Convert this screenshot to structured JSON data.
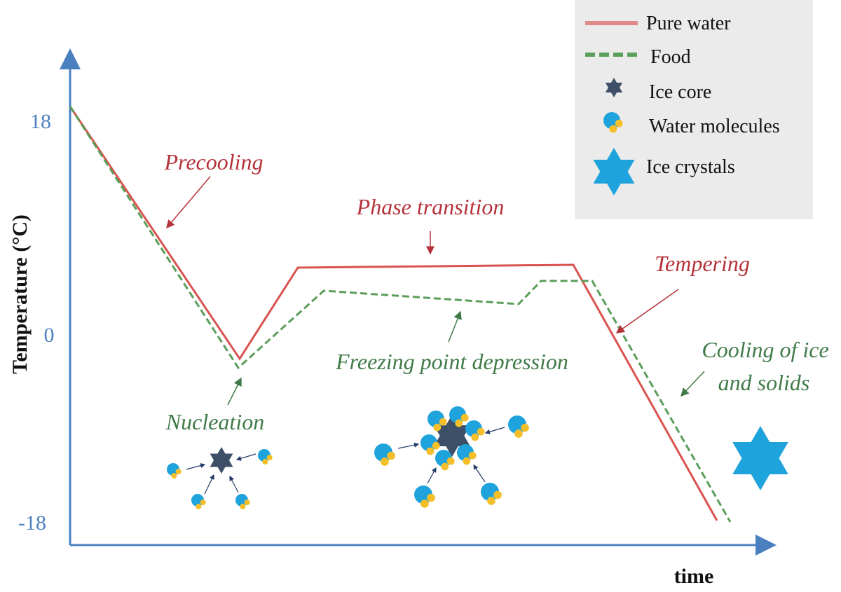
{
  "axes": {
    "y_label": "Temperature (°C)",
    "x_label": "time",
    "y_ticks": [
      "18",
      "0",
      "-18"
    ]
  },
  "annotations": {
    "precooling": "Precooling",
    "phase_transition": "Phase transition",
    "tempering": "Tempering",
    "freezing_point_depression": "Freezing point depression",
    "nucleation": "Nucleation",
    "cooling_line1": "Cooling of ice",
    "cooling_line2": "and solids"
  },
  "legend": [
    "Pure water",
    "Food",
    "Ice core",
    "Water molecules",
    "Ice crystals"
  ]
}
